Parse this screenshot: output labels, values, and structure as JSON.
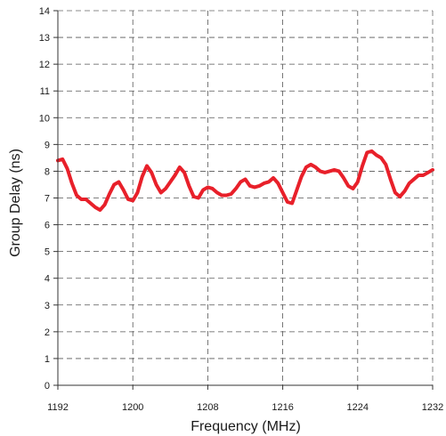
{
  "chart_data": {
    "type": "line",
    "title": "",
    "xlabel": "Frequency (MHz)",
    "ylabel": "Group Delay (ns)",
    "xlim": [
      1192,
      1232
    ],
    "ylim": [
      0,
      14
    ],
    "x_ticks": [
      1192,
      1200,
      1208,
      1216,
      1224,
      1232
    ],
    "y_ticks": [
      0,
      1,
      2,
      3,
      4,
      5,
      6,
      7,
      8,
      9,
      10,
      11,
      12,
      13,
      14
    ],
    "grid": true,
    "grid_style": "dashed",
    "legend": "none",
    "series": [
      {
        "color": "#e8202a",
        "x": [
          1192.0,
          1192.5,
          1193.0,
          1193.5,
          1194.0,
          1194.5,
          1195.0,
          1195.5,
          1196.0,
          1196.5,
          1197.0,
          1197.5,
          1198.0,
          1198.5,
          1199.0,
          1199.5,
          1200.0,
          1200.5,
          1201.0,
          1201.5,
          1202.0,
          1202.5,
          1203.0,
          1203.5,
          1204.0,
          1204.5,
          1205.0,
          1205.5,
          1206.0,
          1206.5,
          1207.0,
          1207.5,
          1208.0,
          1208.5,
          1209.0,
          1209.5,
          1210.0,
          1210.5,
          1211.0,
          1211.5,
          1212.0,
          1212.5,
          1213.0,
          1213.5,
          1214.0,
          1214.5,
          1215.0,
          1215.5,
          1216.0,
          1216.5,
          1217.0,
          1217.5,
          1218.0,
          1218.5,
          1219.0,
          1219.5,
          1220.0,
          1220.5,
          1221.0,
          1221.5,
          1222.0,
          1222.5,
          1223.0,
          1223.5,
          1224.0,
          1224.5,
          1225.0,
          1225.5,
          1226.0,
          1226.5,
          1227.0,
          1227.5,
          1228.0,
          1228.5,
          1229.0,
          1229.5,
          1230.0,
          1230.5,
          1231.0,
          1231.5,
          1232.0
        ],
        "values": [
          8.4,
          8.45,
          8.1,
          7.55,
          7.1,
          6.95,
          6.95,
          6.8,
          6.65,
          6.55,
          6.75,
          7.15,
          7.5,
          7.6,
          7.3,
          6.95,
          6.9,
          7.2,
          7.8,
          8.2,
          7.95,
          7.5,
          7.2,
          7.35,
          7.6,
          7.85,
          8.15,
          7.95,
          7.45,
          7.05,
          7.0,
          7.3,
          7.4,
          7.35,
          7.2,
          7.1,
          7.1,
          7.15,
          7.35,
          7.6,
          7.7,
          7.45,
          7.4,
          7.45,
          7.55,
          7.6,
          7.75,
          7.55,
          7.2,
          6.85,
          6.8,
          7.3,
          7.8,
          8.15,
          8.25,
          8.15,
          8.0,
          7.95,
          8.0,
          8.05,
          8.0,
          7.75,
          7.45,
          7.35,
          7.6,
          8.2,
          8.7,
          8.75,
          8.6,
          8.5,
          8.25,
          7.7,
          7.2,
          7.05,
          7.25,
          7.55,
          7.7,
          7.85,
          7.85,
          7.95,
          8.05
        ]
      }
    ]
  }
}
